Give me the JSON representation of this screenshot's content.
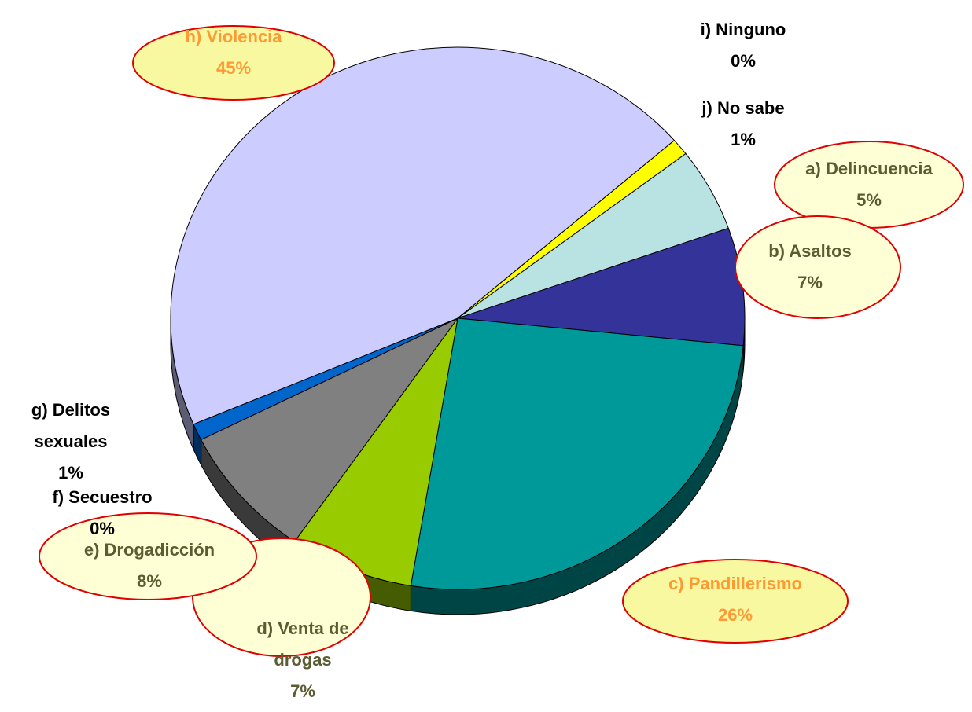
{
  "chart_data": {
    "type": "pie",
    "categories": [
      "a) Delincuencia",
      "b) Asaltos",
      "c) Pandillerismo",
      "d) Venta de drogas",
      "e) Drogadicción",
      "f) Secuestro",
      "g) Delitos sexuales",
      "h) Violencia",
      "i) Ninguno",
      "j) No sabe"
    ],
    "values": [
      5,
      7,
      26,
      7,
      8,
      0,
      1,
      45,
      0,
      1
    ],
    "value_labels": [
      "5%",
      "7%",
      "26%",
      "7%",
      "8%",
      "0%",
      "1%",
      "45%",
      "0%",
      "1%"
    ],
    "colors": [
      "#b9e2e2",
      "#333399",
      "#009999",
      "#99cc00",
      "#808080",
      "#ff0000",
      "#0066cc",
      "#ccccff",
      "#993366",
      "#ffff00"
    ]
  }
}
